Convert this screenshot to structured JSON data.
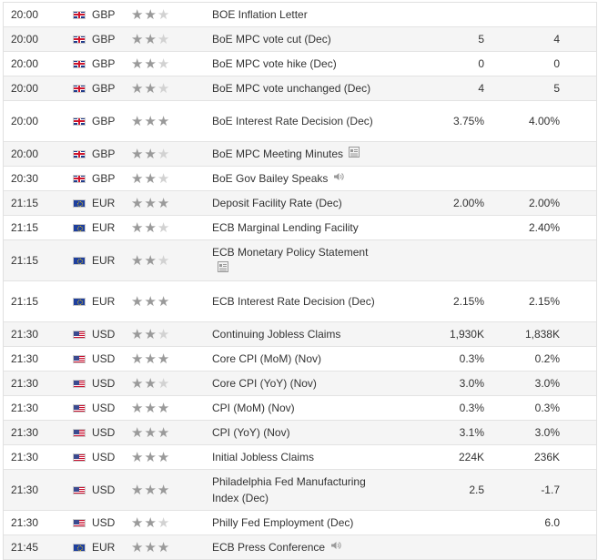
{
  "rows": [
    {
      "time": "20:00",
      "currency": "GBP",
      "flag": "gb",
      "stars": 2,
      "event": "BOE Inflation Letter",
      "icon": "",
      "actual": "",
      "forecast": ""
    },
    {
      "time": "20:00",
      "currency": "GBP",
      "flag": "gb",
      "stars": 2,
      "event": "BoE MPC vote cut (Dec)",
      "icon": "",
      "actual": "5",
      "forecast": "4"
    },
    {
      "time": "20:00",
      "currency": "GBP",
      "flag": "gb",
      "stars": 2,
      "event": "BoE MPC vote hike (Dec)",
      "icon": "",
      "actual": "0",
      "forecast": "0"
    },
    {
      "time": "20:00",
      "currency": "GBP",
      "flag": "gb",
      "stars": 2,
      "event": "BoE MPC vote unchanged (Dec)",
      "icon": "",
      "actual": "4",
      "forecast": "5"
    },
    {
      "time": "20:00",
      "currency": "GBP",
      "flag": "gb",
      "stars": 3,
      "event": "BoE Interest Rate Decision (Dec)",
      "icon": "",
      "actual": "3.75%",
      "forecast": "4.00%"
    },
    {
      "time": "20:00",
      "currency": "GBP",
      "flag": "gb",
      "stars": 2,
      "event": "BoE MPC Meeting Minutes",
      "icon": "document-icon",
      "actual": "",
      "forecast": ""
    },
    {
      "time": "20:30",
      "currency": "GBP",
      "flag": "gb",
      "stars": 2,
      "event": "BoE Gov Bailey Speaks",
      "icon": "speaker-icon",
      "actual": "",
      "forecast": ""
    },
    {
      "time": "21:15",
      "currency": "EUR",
      "flag": "eu",
      "stars": 3,
      "event": "Deposit Facility Rate (Dec)",
      "icon": "",
      "actual": "2.00%",
      "forecast": "2.00%"
    },
    {
      "time": "21:15",
      "currency": "EUR",
      "flag": "eu",
      "stars": 2,
      "event": "ECB Marginal Lending Facility",
      "icon": "",
      "actual": "",
      "forecast": "2.40%"
    },
    {
      "time": "21:15",
      "currency": "EUR",
      "flag": "eu",
      "stars": 2,
      "event": "ECB Monetary Policy Statement",
      "icon": "document-icon",
      "actual": "",
      "forecast": ""
    },
    {
      "time": "21:15",
      "currency": "EUR",
      "flag": "eu",
      "stars": 3,
      "event": "ECB Interest Rate Decision (Dec)",
      "icon": "",
      "actual": "2.15%",
      "forecast": "2.15%"
    },
    {
      "time": "21:30",
      "currency": "USD",
      "flag": "us",
      "stars": 2,
      "event": "Continuing Jobless Claims",
      "icon": "",
      "actual": "1,930K",
      "forecast": "1,838K"
    },
    {
      "time": "21:30",
      "currency": "USD",
      "flag": "us",
      "stars": 3,
      "event": "Core CPI (MoM) (Nov)",
      "icon": "",
      "actual": "0.3%",
      "forecast": "0.2%"
    },
    {
      "time": "21:30",
      "currency": "USD",
      "flag": "us",
      "stars": 2,
      "event": "Core CPI (YoY) (Nov)",
      "icon": "",
      "actual": "3.0%",
      "forecast": "3.0%"
    },
    {
      "time": "21:30",
      "currency": "USD",
      "flag": "us",
      "stars": 3,
      "event": "CPI (MoM) (Nov)",
      "icon": "",
      "actual": "0.3%",
      "forecast": "0.3%"
    },
    {
      "time": "21:30",
      "currency": "USD",
      "flag": "us",
      "stars": 3,
      "event": "CPI (YoY) (Nov)",
      "icon": "",
      "actual": "3.1%",
      "forecast": "3.0%"
    },
    {
      "time": "21:30",
      "currency": "USD",
      "flag": "us",
      "stars": 3,
      "event": "Initial Jobless Claims",
      "icon": "",
      "actual": "224K",
      "forecast": "236K"
    },
    {
      "time": "21:30",
      "currency": "USD",
      "flag": "us",
      "stars": 3,
      "event": "Philadelphia Fed Manufacturing Index (Dec)",
      "icon": "",
      "actual": "2.5",
      "forecast": "-1.7"
    },
    {
      "time": "21:30",
      "currency": "USD",
      "flag": "us",
      "stars": 2,
      "event": "Philly Fed Employment (Dec)",
      "icon": "",
      "actual": "",
      "forecast": "6.0"
    },
    {
      "time": "21:45",
      "currency": "EUR",
      "flag": "eu",
      "stars": 3,
      "event": "ECB Press Conference",
      "icon": "speaker-icon",
      "actual": "",
      "forecast": ""
    }
  ]
}
